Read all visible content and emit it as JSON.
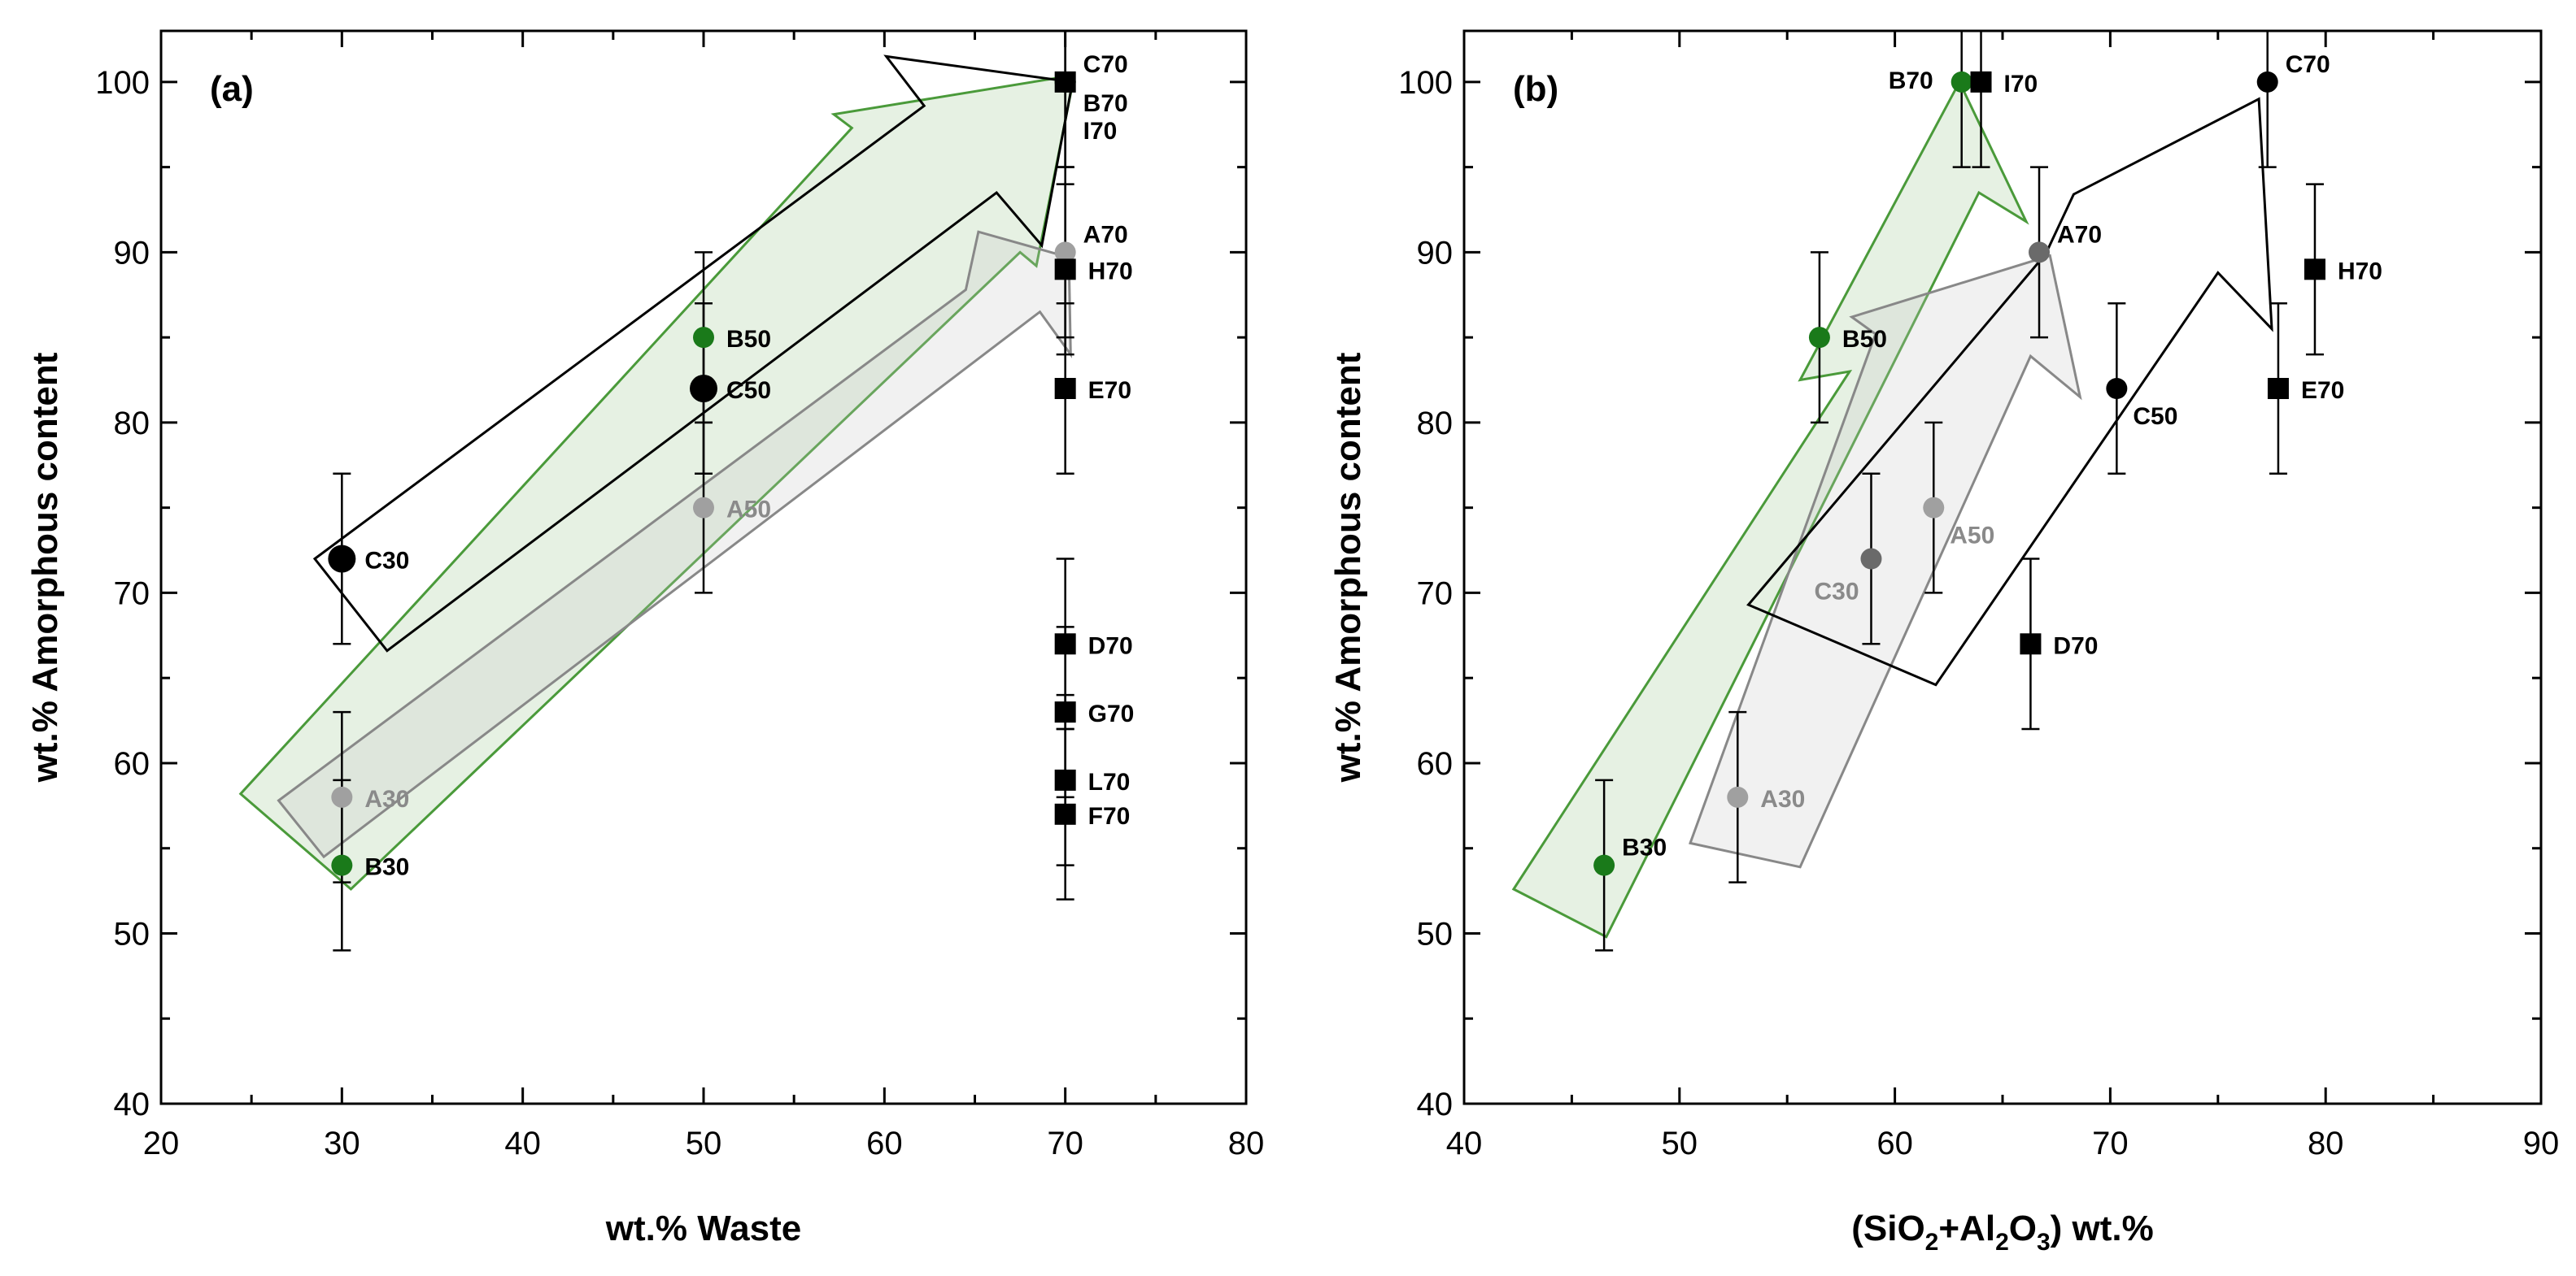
{
  "chart_data": [
    {
      "type": "scatter",
      "panel_label": "(a)",
      "xlabel": "wt.% Waste",
      "ylabel": "wt.% Amorphous content",
      "xlim": [
        20,
        80
      ],
      "ylim": [
        40,
        103
      ],
      "x_ticks": [
        20,
        30,
        40,
        50,
        60,
        70,
        80
      ],
      "y_ticks": [
        40,
        50,
        60,
        70,
        80,
        90,
        100
      ],
      "grid": false,
      "colors": {
        "green": "#1a7a1a",
        "black": "#000000",
        "grey": "#a0a0a0",
        "dark_grey": "#6a6a6a",
        "label_grey": "#8a8a8a"
      },
      "points": [
        {
          "label": "C30",
          "x": 30,
          "y": 72,
          "err": 5,
          "marker": "circle",
          "size": "large",
          "color": "black",
          "label_color": "black",
          "label_pos": "right"
        },
        {
          "label": "B30",
          "x": 30,
          "y": 54,
          "err": 5,
          "marker": "circle",
          "color": "green",
          "label_color": "black",
          "label_pos": "right"
        },
        {
          "label": "A30",
          "x": 30,
          "y": 58,
          "err": 5,
          "marker": "circle",
          "color": "grey",
          "label_color": "grey",
          "label_pos": "right"
        },
        {
          "label": "B50",
          "x": 50,
          "y": 85,
          "err": 5,
          "marker": "circle",
          "color": "green",
          "label_color": "black",
          "label_pos": "right"
        },
        {
          "label": "C50",
          "x": 50,
          "y": 82,
          "err": 5,
          "marker": "circle",
          "size": "large",
          "color": "black",
          "label_color": "black",
          "label_pos": "right"
        },
        {
          "label": "A50",
          "x": 50,
          "y": 75,
          "err": 5,
          "marker": "circle",
          "color": "grey",
          "label_color": "grey",
          "label_pos": "right"
        },
        {
          "label": "C70",
          "x": 70,
          "y": 100,
          "err": 5,
          "marker": "circle",
          "color": "black",
          "label_color": "black",
          "label_pos": "upper-right"
        },
        {
          "label": "B70",
          "x": 70,
          "y": 100,
          "err": 5,
          "marker": "circle",
          "color": "green",
          "label_color": "black",
          "label_pos": "right-below"
        },
        {
          "label": "I70",
          "x": 70,
          "y": 100,
          "err": 5,
          "marker": "square",
          "color": "black",
          "label_color": "black",
          "label_pos": "right-below-2"
        },
        {
          "label": "A70",
          "x": 70,
          "y": 90,
          "err": 5,
          "marker": "circle",
          "color": "grey",
          "label_color": "black",
          "label_pos": "upper-right"
        },
        {
          "label": "H70",
          "x": 70,
          "y": 89,
          "err": 5,
          "marker": "square",
          "color": "black",
          "label_color": "black",
          "label_pos": "right"
        },
        {
          "label": "E70",
          "x": 70,
          "y": 82,
          "err": 5,
          "marker": "square",
          "color": "black",
          "label_color": "black",
          "label_pos": "right"
        },
        {
          "label": "D70",
          "x": 70,
          "y": 67,
          "err": 5,
          "marker": "square",
          "color": "black",
          "label_color": "black",
          "label_pos": "right"
        },
        {
          "label": "G70",
          "x": 70,
          "y": 63,
          "err": 5,
          "marker": "square",
          "color": "black",
          "label_color": "black",
          "label_pos": "right"
        },
        {
          "label": "L70",
          "x": 70,
          "y": 59,
          "err": 5,
          "marker": "square",
          "color": "black",
          "label_color": "black",
          "label_pos": "right"
        },
        {
          "label": "F70",
          "x": 70,
          "y": 57,
          "err": 5,
          "marker": "square",
          "color": "black",
          "label_color": "black",
          "label_pos": "right"
        }
      ],
      "trend_arrows": [
        {
          "name": "green-arrow",
          "fill": "rgba(90,160,70,0.15)",
          "stroke": "#4a9a3a",
          "polygon": [
            [
              24.4,
              58.2
            ],
            [
              58.2,
              97.3
            ],
            [
              57.2,
              98.1
            ],
            [
              70.5,
              100.4
            ],
            [
              68.4,
              89.2
            ],
            [
              67.5,
              90.0
            ],
            [
              30.5,
              52.6
            ]
          ]
        },
        {
          "name": "grey-arrow",
          "fill": "rgba(200,200,200,0.25)",
          "stroke": "#888888",
          "polygon": [
            [
              26.5,
              57.8
            ],
            [
              64.5,
              87.8
            ],
            [
              65.2,
              91.2
            ],
            [
              70.2,
              89.7
            ],
            [
              70.3,
              84.0
            ],
            [
              68.6,
              86.5
            ],
            [
              29.0,
              54.5
            ]
          ]
        },
        {
          "name": "black-arrow",
          "fill": "none",
          "stroke": "#000000",
          "polygon": [
            [
              28.5,
              72.0
            ],
            [
              62.2,
              98.6
            ],
            [
              60.1,
              101.5
            ],
            [
              70.4,
              100.0
            ],
            [
              68.7,
              90.4
            ],
            [
              66.2,
              93.5
            ],
            [
              32.5,
              66.6
            ]
          ]
        }
      ]
    },
    {
      "type": "scatter",
      "panel_label": "(b)",
      "xlabel_parts": [
        "(SiO",
        "2",
        "+Al",
        "2",
        "O",
        "3",
        ") wt.%"
      ],
      "ylabel": "wt.% Amorphous content",
      "xlim": [
        40,
        90
      ],
      "ylim": [
        40,
        103
      ],
      "x_ticks": [
        40,
        50,
        60,
        70,
        80,
        90
      ],
      "y_ticks": [
        40,
        50,
        60,
        70,
        80,
        90,
        100
      ],
      "grid": false,
      "colors": {
        "green": "#1a7a1a",
        "black": "#000000",
        "grey": "#a0a0a0",
        "dark_grey": "#6a6a6a",
        "label_grey": "#8a8a8a"
      },
      "points": [
        {
          "label": "B70",
          "x": 63.1,
          "y": 100,
          "err": 5,
          "marker": "circle",
          "color": "green",
          "label_color": "black",
          "label_pos": "left"
        },
        {
          "label": "I70",
          "x": 64.0,
          "y": 100,
          "err": 5,
          "marker": "square",
          "color": "black",
          "label_color": "black",
          "label_pos": "right"
        },
        {
          "label": "C70",
          "x": 77.3,
          "y": 100,
          "err": 5,
          "marker": "circle",
          "color": "black",
          "label_color": "black",
          "label_pos": "upper-right"
        },
        {
          "label": "A70",
          "x": 66.7,
          "y": 90,
          "err": 5,
          "marker": "circle",
          "color": "dark_grey",
          "label_color": "black",
          "label_pos": "upper-right"
        },
        {
          "label": "H70",
          "x": 79.5,
          "y": 89,
          "err": 5,
          "marker": "square",
          "color": "black",
          "label_color": "black",
          "label_pos": "right"
        },
        {
          "label": "B50",
          "x": 56.5,
          "y": 85,
          "err": 5,
          "marker": "circle",
          "color": "green",
          "label_color": "black",
          "label_pos": "right"
        },
        {
          "label": "C50",
          "x": 70.3,
          "y": 82,
          "err": 5,
          "marker": "circle",
          "color": "black",
          "label_color": "black",
          "label_pos": "lower-right"
        },
        {
          "label": "E70",
          "x": 77.8,
          "y": 82,
          "err": 5,
          "marker": "square",
          "color": "black",
          "label_color": "black",
          "label_pos": "right"
        },
        {
          "label": "A50",
          "x": 61.8,
          "y": 75,
          "err": 5,
          "marker": "circle",
          "color": "grey",
          "label_color": "grey",
          "label_pos": "lower-right"
        },
        {
          "label": "C30",
          "x": 58.9,
          "y": 72,
          "err": 5,
          "marker": "circle",
          "color": "dark_grey",
          "label_color": "grey",
          "label_pos": "lower-left"
        },
        {
          "label": "D70",
          "x": 66.3,
          "y": 67,
          "err": 5,
          "marker": "square",
          "color": "black",
          "label_color": "black",
          "label_pos": "right"
        },
        {
          "label": "A30",
          "x": 52.7,
          "y": 58,
          "err": 5,
          "marker": "circle",
          "color": "grey",
          "label_color": "grey",
          "label_pos": "right"
        },
        {
          "label": "B30",
          "x": 46.5,
          "y": 54,
          "err": 5,
          "marker": "circle",
          "color": "green",
          "label_color": "black",
          "label_pos": "upper-right"
        }
      ],
      "trend_arrows": [
        {
          "name": "green-arrow",
          "fill": "rgba(90,160,70,0.15)",
          "stroke": "#4a9a3a",
          "polygon": [
            [
              42.3,
              52.6
            ],
            [
              57.9,
              83.0
            ],
            [
              55.6,
              82.5
            ],
            [
              63.0,
              100.0
            ],
            [
              66.1,
              91.8
            ],
            [
              63.9,
              93.5
            ],
            [
              46.6,
              49.8
            ]
          ]
        },
        {
          "name": "grey-arrow",
          "fill": "rgba(200,200,200,0.25)",
          "stroke": "#888888",
          "polygon": [
            [
              50.5,
              55.3
            ],
            [
              59.1,
              85.2
            ],
            [
              58.0,
              86.2
            ],
            [
              67.2,
              89.8
            ],
            [
              68.6,
              81.5
            ],
            [
              66.3,
              83.9
            ],
            [
              55.6,
              53.9
            ]
          ]
        },
        {
          "name": "black-arrow",
          "fill": "none",
          "stroke": "#000000",
          "polygon": [
            [
              53.2,
              69.3
            ],
            [
              67.0,
              89.9
            ],
            [
              68.3,
              93.4
            ],
            [
              76.9,
              99.0
            ],
            [
              77.5,
              85.5
            ],
            [
              75.0,
              88.8
            ],
            [
              61.9,
              64.6
            ]
          ]
        }
      ]
    }
  ]
}
